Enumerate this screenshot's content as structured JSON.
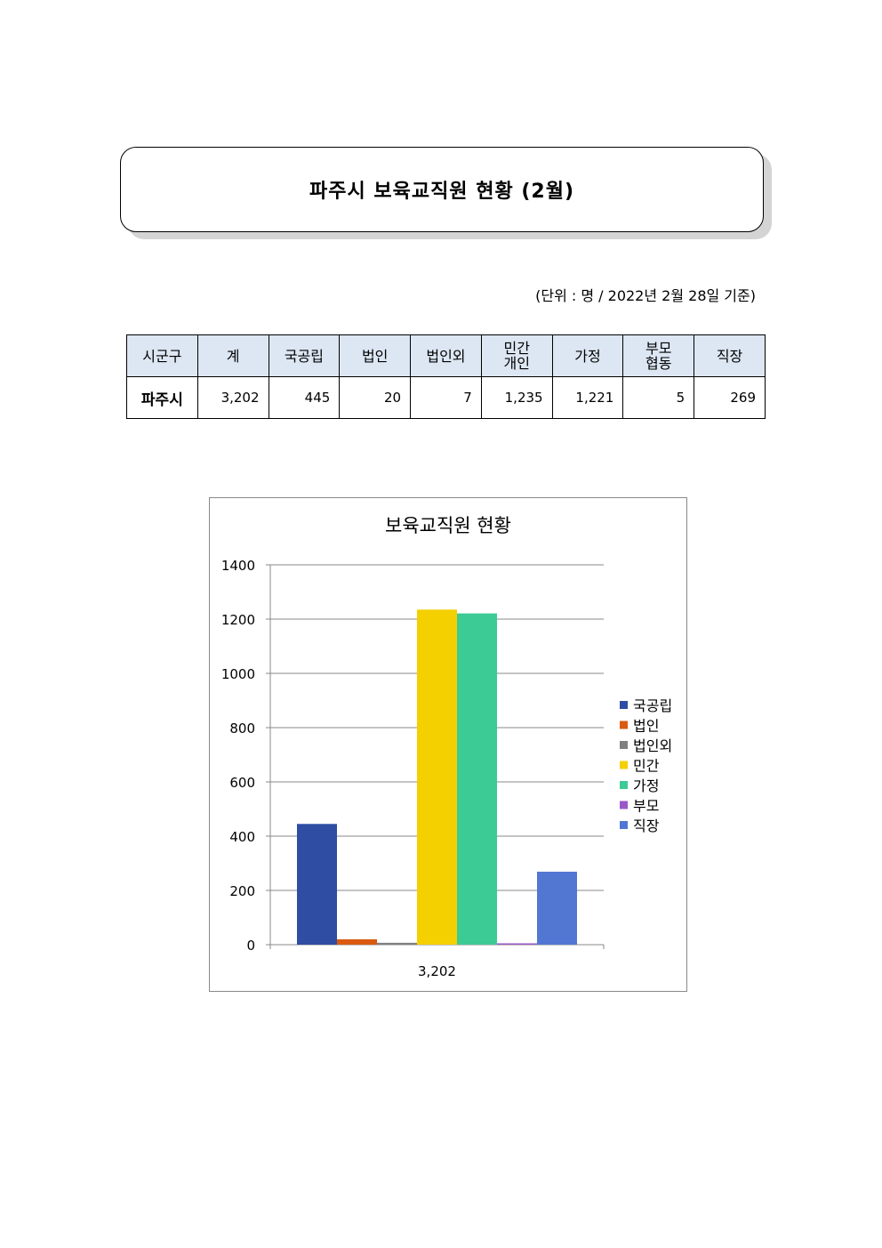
{
  "document": {
    "title": "파주시  보육교직원  현황  (2월)",
    "unit_note": "(단위 : 명 / 2022년 2월 28일 기준)"
  },
  "table": {
    "headers": [
      {
        "lines": [
          "시군구"
        ]
      },
      {
        "lines": [
          "계"
        ]
      },
      {
        "lines": [
          "국공립"
        ]
      },
      {
        "lines": [
          "법인"
        ]
      },
      {
        "lines": [
          "법인외"
        ]
      },
      {
        "lines": [
          "민간",
          "개인"
        ]
      },
      {
        "lines": [
          "가정"
        ]
      },
      {
        "lines": [
          "부모",
          "협동"
        ]
      },
      {
        "lines": [
          "직장"
        ]
      }
    ],
    "row": {
      "region": "파주시",
      "values": [
        "3,202",
        "445",
        "20",
        "7",
        "1,235",
        "1,221",
        "5",
        "269"
      ]
    }
  },
  "chart_data": {
    "type": "bar",
    "title": "보육교직원 현황",
    "categories": [
      "3,202"
    ],
    "series": [
      {
        "name": "국공립",
        "values": [
          445
        ],
        "color": "#2e4da3"
      },
      {
        "name": "법인",
        "values": [
          20
        ],
        "color": "#d95a10"
      },
      {
        "name": "법인외",
        "values": [
          7
        ],
        "color": "#808080"
      },
      {
        "name": "민간",
        "values": [
          1235
        ],
        "color": "#f5d000"
      },
      {
        "name": "가정",
        "values": [
          1221
        ],
        "color": "#3cca95"
      },
      {
        "name": "부모",
        "values": [
          5
        ],
        "color": "#9b59c6"
      },
      {
        "name": "직장",
        "values": [
          269
        ],
        "color": "#5277d2"
      }
    ],
    "yticks": [
      "0",
      "200",
      "400",
      "600",
      "800",
      "1000",
      "1200",
      "1400"
    ],
    "ylim": [
      0,
      1400
    ],
    "grid": true,
    "legend": "right"
  }
}
